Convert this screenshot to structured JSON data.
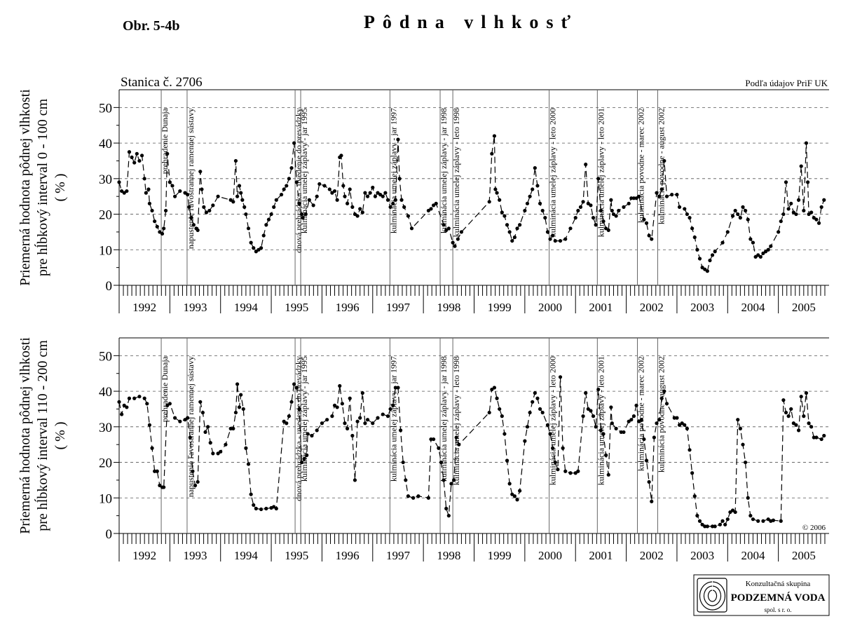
{
  "figure_label": "Obr. 5-4b",
  "title": "Pôdna vlhkosť",
  "logo": {
    "line1": "Konzultačná skupina",
    "line2": "PODZEMNÁ VODA",
    "line3": "spol. s r. o."
  },
  "chart_data": [
    {
      "type": "line",
      "subtitle": "Stanica č. 2706",
      "source": "Podľa údajov PriF UK",
      "ylabel": [
        "Priemerná hodnota pôdnej vlhkosti",
        "pre hĺbkový interval 0 - 100 cm",
        "( % )"
      ],
      "xlim": [
        1992,
        2006
      ],
      "xticks": [
        1992,
        1993,
        1994,
        1995,
        1996,
        1997,
        1998,
        1999,
        2000,
        2001,
        2002,
        2003,
        2004,
        2005
      ],
      "ylim": [
        0,
        55
      ],
      "yticks": [
        0,
        10,
        20,
        30,
        40,
        50
      ],
      "grid": true,
      "annotations": [
        {
          "x": 1992.83,
          "text": "prehradenie Dunaja"
        },
        {
          "x": 1993.34,
          "text": "napustenie ľavostrannej ramennej sústavy"
        },
        {
          "x": 1995.47,
          "text": "dnová prehrádzka - uvedenie do prevádzky"
        },
        {
          "x": 1995.58,
          "text": "kulminácia umelej záplavy - jar 1995"
        },
        {
          "x": 1997.34,
          "text": "kulminácia umelej záplavy - jar 1997"
        },
        {
          "x": 1998.33,
          "text": "kulminácia umelej záplavy - jar 1998"
        },
        {
          "x": 1998.58,
          "text": "kulminácia umelej záplavy - leto 1998"
        },
        {
          "x": 2000.48,
          "text": "kulminácia umelej záplavy - leto 2000"
        },
        {
          "x": 2001.43,
          "text": "kulminácia umelej záplavy - leto 2001"
        },
        {
          "x": 2002.22,
          "text": "kulminácia povodne - marec 2002"
        },
        {
          "x": 2002.62,
          "text": "kulminácia povodne - august 2002"
        }
      ],
      "x": [
        1992.0,
        1992.05,
        1992.1,
        1992.15,
        1992.2,
        1992.25,
        1992.3,
        1992.35,
        1992.4,
        1992.45,
        1992.5,
        1992.53,
        1992.58,
        1992.6,
        1992.65,
        1992.7,
        1992.75,
        1992.8,
        1992.85,
        1992.88,
        1992.92,
        1992.95,
        1993.0,
        1993.05,
        1993.1,
        1993.2,
        1993.3,
        1993.35,
        1993.38,
        1993.42,
        1993.47,
        1993.52,
        1993.55,
        1993.6,
        1993.63,
        1993.67,
        1993.72,
        1993.78,
        1993.85,
        1993.95,
        1994.2,
        1994.25,
        1994.3,
        1994.33,
        1994.37,
        1994.4,
        1994.43,
        1994.47,
        1994.5,
        1994.55,
        1994.6,
        1994.65,
        1994.7,
        1994.75,
        1994.8,
        1994.85,
        1994.9,
        1994.95,
        1995.0,
        1995.05,
        1995.1,
        1995.2,
        1995.25,
        1995.3,
        1995.35,
        1995.4,
        1995.45,
        1995.5,
        1995.55,
        1995.6,
        1995.62,
        1995.68,
        1995.75,
        1995.83,
        1995.9,
        1995.95,
        1996.05,
        1996.15,
        1996.2,
        1996.25,
        1996.3,
        1996.35,
        1996.38,
        1996.42,
        1996.45,
        1996.5,
        1996.55,
        1996.6,
        1996.65,
        1996.7,
        1996.75,
        1996.8,
        1996.85,
        1996.9,
        1996.95,
        1997.0,
        1997.05,
        1997.1,
        1997.15,
        1997.2,
        1997.25,
        1997.3,
        1997.35,
        1997.4,
        1997.45,
        1997.5,
        1997.53,
        1997.57,
        1997.62,
        1997.7,
        1997.77,
        1998.1,
        1998.15,
        1998.2,
        1998.25,
        1998.4,
        1998.45,
        1998.5,
        1998.58,
        1998.62,
        1998.68,
        1998.75,
        1999.3,
        1999.35,
        1999.4,
        1999.42,
        1999.45,
        1999.5,
        1999.55,
        1999.6,
        1999.65,
        1999.7,
        1999.75,
        1999.8,
        1999.85,
        1999.9,
        2000.0,
        2000.05,
        2000.1,
        2000.15,
        2000.2,
        2000.25,
        2000.3,
        2000.35,
        2000.4,
        2000.45,
        2000.5,
        2000.55,
        2000.6,
        2000.7,
        2000.8,
        2000.9,
        2001.0,
        2001.05,
        2001.1,
        2001.15,
        2001.2,
        2001.25,
        2001.3,
        2001.35,
        2001.4,
        2001.45,
        2001.5,
        2001.55,
        2001.6,
        2001.65,
        2001.7,
        2001.72,
        2001.75,
        2001.8,
        2001.85,
        2001.95,
        2002.05,
        2002.1,
        2002.15,
        2002.2,
        2002.25,
        2002.35,
        2002.4,
        2002.45,
        2002.5,
        2002.6,
        2002.65,
        2002.7,
        2002.75,
        2002.8,
        2002.9,
        2003.0,
        2003.05,
        2003.15,
        2003.2,
        2003.25,
        2003.3,
        2003.35,
        2003.4,
        2003.45,
        2003.5,
        2003.55,
        2003.6,
        2003.65,
        2003.7,
        2003.75,
        2003.9,
        2004.0,
        2004.1,
        2004.15,
        2004.2,
        2004.25,
        2004.3,
        2004.35,
        2004.4,
        2004.45,
        2004.5,
        2004.55,
        2004.6,
        2004.65,
        2004.7,
        2004.75,
        2004.8,
        2004.85,
        2005.0,
        2005.05,
        2005.1,
        2005.15,
        2005.2,
        2005.25,
        2005.3,
        2005.35,
        2005.4,
        2005.45,
        2005.5,
        2005.55,
        2005.58,
        2005.6,
        2005.65,
        2005.7,
        2005.75,
        2005.8,
        2005.85,
        2005.9
      ],
      "series": [
        {
          "color": "#000000",
          "values": [
            29,
            26.5,
            26,
            26.5,
            37.5,
            36,
            34.5,
            37,
            35,
            36.5,
            30,
            26,
            27,
            23,
            21,
            18,
            16.5,
            15,
            14.5,
            16,
            21,
            37,
            29,
            28,
            25,
            26.5,
            26,
            25.5,
            22,
            19,
            17,
            16,
            15.5,
            32,
            27,
            22,
            20.5,
            21,
            22.5,
            25,
            24,
            23.5,
            35,
            25,
            28,
            26,
            24,
            22,
            20,
            16,
            12,
            10.5,
            9.5,
            10,
            10.5,
            14,
            17,
            18.5,
            20,
            22,
            24,
            25.5,
            27,
            28,
            30,
            33,
            40,
            29,
            23,
            20,
            19,
            20,
            24,
            22.5,
            25,
            28.5,
            28,
            27,
            26,
            26.5,
            24,
            36,
            36.5,
            28,
            25,
            23,
            27,
            22,
            20,
            19.5,
            21.5,
            20.5,
            26,
            25,
            26,
            27.5,
            25,
            26,
            25.5,
            25,
            26,
            24,
            22,
            23,
            24,
            41,
            30,
            24,
            22,
            19.5,
            16,
            21,
            21.5,
            22.5,
            23,
            17,
            15.5,
            16,
            12,
            11,
            13,
            15,
            23.5,
            37,
            42,
            27,
            26,
            24,
            20.5,
            19.5,
            17,
            15,
            12.5,
            13.5,
            16,
            17,
            21,
            23,
            25,
            27,
            33,
            28,
            23,
            21,
            19,
            15,
            13,
            14,
            12.5,
            12.5,
            13,
            16,
            19,
            21,
            22,
            23.5,
            34,
            23,
            22.5,
            19,
            17,
            30,
            21,
            18,
            16,
            15.5,
            24,
            21,
            20,
            19.5,
            21,
            22,
            23,
            24.5,
            24.5,
            24.5,
            25,
            18.5,
            17.5,
            14,
            13,
            26,
            25,
            27,
            35,
            25,
            25.5,
            25.5,
            22,
            21.5,
            20,
            19,
            16,
            13.5,
            10,
            7.5,
            5,
            4.5,
            4,
            7,
            8.5,
            9.5,
            12,
            15,
            19.5,
            21,
            20,
            19,
            22,
            21,
            18.5,
            13,
            12,
            8,
            8.5,
            8,
            9,
            9.5,
            10,
            11,
            15,
            18,
            20,
            29,
            21.5,
            23,
            20.5,
            20,
            24,
            33.5,
            21,
            40,
            29,
            20,
            20.5,
            19,
            18.5,
            17.5,
            22,
            24
          ]
        }
      ]
    },
    {
      "type": "line",
      "note": "© 2006",
      "ylabel": [
        "Priemerná hodnota pôdnej vlhkosti",
        "pre hĺbkový interval 110 - 200 cm",
        "( % )"
      ],
      "xlim": [
        1992,
        2006
      ],
      "xticks": [
        1992,
        1993,
        1994,
        1995,
        1996,
        1997,
        1998,
        1999,
        2000,
        2001,
        2002,
        2003,
        2004,
        2005
      ],
      "ylim": [
        0,
        55
      ],
      "yticks": [
        0,
        10,
        20,
        30,
        40,
        50
      ],
      "grid": true,
      "annotations": [
        {
          "x": 1992.83,
          "text": "prehradenie Dunaja"
        },
        {
          "x": 1993.34,
          "text": "napustenie ľavostrannej ramennej sústavy"
        },
        {
          "x": 1995.47,
          "text": "dnová prehrádzka - uvedenie do prevádzky"
        },
        {
          "x": 1995.58,
          "text": "kulminácia umelej záplavy - jar 1995"
        },
        {
          "x": 1997.34,
          "text": "kulminácia umelej záplavy - jar 1997"
        },
        {
          "x": 1998.33,
          "text": "kulminácia umelej záplavy - jar 1998"
        },
        {
          "x": 1998.58,
          "text": "kulminácia umelej záplavy - leto 1998"
        },
        {
          "x": 2000.48,
          "text": "kulminácia umelej záplavy - leto 2000"
        },
        {
          "x": 2001.43,
          "text": "kulminácia umelej záplavy - leto 2001"
        },
        {
          "x": 2002.22,
          "text": "kulminácia povodne - marec 2002"
        },
        {
          "x": 2002.62,
          "text": "kulminácia povodne - august 2002"
        }
      ],
      "x": [
        1992.0,
        1992.05,
        1992.1,
        1992.15,
        1992.2,
        1992.3,
        1992.4,
        1992.5,
        1992.55,
        1992.6,
        1992.65,
        1992.7,
        1992.75,
        1992.8,
        1992.85,
        1992.88,
        1992.95,
        1993.0,
        1993.1,
        1993.2,
        1993.3,
        1993.35,
        1993.4,
        1993.45,
        1993.5,
        1993.55,
        1993.6,
        1993.65,
        1993.7,
        1993.75,
        1993.8,
        1993.85,
        1993.95,
        1994.0,
        1994.1,
        1994.2,
        1994.25,
        1994.3,
        1994.33,
        1994.37,
        1994.4,
        1994.45,
        1994.5,
        1994.55,
        1994.6,
        1994.65,
        1994.7,
        1994.8,
        1994.9,
        1995.0,
        1995.05,
        1995.1,
        1995.25,
        1995.3,
        1995.35,
        1995.4,
        1995.45,
        1995.5,
        1995.55,
        1995.6,
        1995.65,
        1995.7,
        1995.72,
        1995.8,
        1995.9,
        1996.0,
        1996.1,
        1996.2,
        1996.25,
        1996.3,
        1996.35,
        1996.4,
        1996.45,
        1996.5,
        1996.55,
        1996.6,
        1996.65,
        1996.7,
        1996.75,
        1996.8,
        1996.85,
        1996.9,
        1997.0,
        1997.1,
        1997.2,
        1997.3,
        1997.35,
        1997.4,
        1997.45,
        1997.5,
        1997.55,
        1997.6,
        1997.65,
        1997.7,
        1997.8,
        1997.9,
        1998.1,
        1998.15,
        1998.2,
        1998.3,
        1998.35,
        1998.4,
        1998.45,
        1998.5,
        1998.55,
        1998.6,
        1998.65,
        1998.7,
        1999.3,
        1999.35,
        1999.4,
        1999.45,
        1999.5,
        1999.55,
        1999.6,
        1999.65,
        1999.7,
        1999.75,
        1999.8,
        1999.85,
        1999.9,
        2000.0,
        2000.05,
        2000.1,
        2000.15,
        2000.2,
        2000.25,
        2000.3,
        2000.35,
        2000.45,
        2000.5,
        2000.55,
        2000.6,
        2000.65,
        2000.7,
        2000.75,
        2000.8,
        2000.9,
        2001.0,
        2001.05,
        2001.15,
        2001.2,
        2001.25,
        2001.3,
        2001.35,
        2001.4,
        2001.45,
        2001.5,
        2001.55,
        2001.6,
        2001.65,
        2001.7,
        2001.72,
        2001.8,
        2001.9,
        2001.95,
        2002.05,
        2002.1,
        2002.15,
        2002.2,
        2002.25,
        2002.3,
        2002.35,
        2002.4,
        2002.45,
        2002.5,
        2002.55,
        2002.6,
        2002.65,
        2002.7,
        2002.75,
        2002.8,
        2002.95,
        2003.0,
        2003.05,
        2003.1,
        2003.15,
        2003.2,
        2003.25,
        2003.3,
        2003.35,
        2003.4,
        2003.45,
        2003.5,
        2003.55,
        2003.6,
        2003.7,
        2003.75,
        2003.85,
        2003.9,
        2003.95,
        2004.0,
        2004.05,
        2004.1,
        2004.15,
        2004.2,
        2004.25,
        2004.3,
        2004.35,
        2004.4,
        2004.45,
        2004.5,
        2004.6,
        2004.7,
        2004.8,
        2004.85,
        2004.9,
        2005.05,
        2005.1,
        2005.15,
        2005.2,
        2005.25,
        2005.3,
        2005.35,
        2005.4,
        2005.45,
        2005.5,
        2005.55,
        2005.6,
        2005.65,
        2005.7,
        2005.75,
        2005.85,
        2005.9
      ],
      "series": [
        {
          "color": "#000000",
          "values": [
            37,
            33.5,
            36,
            35.5,
            38,
            38,
            38.5,
            38,
            36.5,
            30.5,
            24,
            17.5,
            17.5,
            13.5,
            13,
            13,
            36,
            36.5,
            32.5,
            31.5,
            32,
            32.5,
            27,
            17.5,
            13.5,
            14.5,
            37,
            34,
            28.5,
            30,
            25.5,
            22.5,
            22.5,
            23,
            25,
            29.5,
            29.5,
            34,
            42,
            35.5,
            39,
            35,
            24,
            19.5,
            11,
            8,
            7,
            6.8,
            7,
            7.2,
            7.5,
            7,
            31.5,
            31,
            33,
            37,
            42,
            41,
            35,
            20,
            21,
            22,
            28,
            27.5,
            29,
            31,
            32,
            33,
            36,
            35.5,
            41.5,
            36.5,
            31,
            29.5,
            38,
            27.5,
            15,
            31.5,
            32.5,
            39.5,
            31,
            32,
            31,
            32.5,
            33.5,
            33,
            35,
            36,
            41,
            41,
            29,
            20,
            15,
            10.5,
            10,
            10.5,
            10,
            26.5,
            26.5,
            24,
            20,
            15,
            7,
            5,
            14,
            15,
            27,
            25,
            34,
            40.5,
            41,
            38,
            35,
            33,
            28,
            20.5,
            14,
            11,
            10.5,
            9.5,
            12,
            26,
            30,
            34,
            37,
            39.5,
            38,
            35,
            34,
            30.5,
            28,
            24,
            20,
            18,
            44,
            24,
            17.5,
            17,
            17,
            17.5,
            33,
            39.5,
            35,
            34.5,
            33,
            30,
            40.5,
            29,
            28,
            22,
            16.5,
            35.5,
            31,
            29.5,
            28.5,
            28.5,
            31.5,
            32,
            33,
            36,
            31.5,
            32,
            26.5,
            20.5,
            14.5,
            9,
            27,
            31,
            32,
            38,
            40,
            36.5,
            32.5,
            32.5,
            30.5,
            31,
            30.5,
            29.5,
            23.5,
            17,
            10.5,
            5,
            3.5,
            2.5,
            2,
            2,
            2,
            2,
            2.5,
            3.5,
            2.5,
            4,
            6,
            6.5,
            6,
            32,
            29.5,
            25,
            20,
            10,
            5,
            4,
            3.5,
            3.5,
            4,
            3.5,
            3.7,
            3.5,
            37.5,
            34,
            33,
            35,
            31,
            30.5,
            29,
            38.5,
            33,
            39.5,
            31,
            30,
            27,
            27,
            26.5,
            27.5
          ]
        }
      ]
    }
  ]
}
